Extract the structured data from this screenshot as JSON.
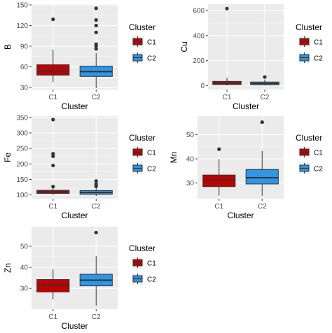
{
  "colors": {
    "panel_bg": "#ebebeb",
    "grid_major": "#ffffff",
    "text_tick": "#4d4d4d",
    "outline": "#333333",
    "C1_fill": "#c00000",
    "C2_fill": "#2f96e6"
  },
  "legend": {
    "title": "Cluster",
    "items": [
      {
        "key": "C1",
        "label": "C1"
      },
      {
        "key": "C2",
        "label": "C2"
      }
    ]
  },
  "chart_data": [
    {
      "type": "boxplot",
      "xlabel": "Cluster",
      "ylabel": "B",
      "categories": [
        "C1",
        "C2"
      ],
      "ylim": [
        27,
        151
      ],
      "yticks": [
        30,
        60,
        90,
        120,
        150
      ],
      "grid": true,
      "legend_position": "right",
      "boxes": [
        {
          "group": "C1",
          "q1": 48,
          "median": 54,
          "q3": 63,
          "lower_whisker": 38,
          "upper_whisker": 85,
          "outliers": [
            129
          ]
        },
        {
          "group": "C2",
          "q1": 46,
          "median": 53,
          "q3": 61,
          "lower_whisker": 29,
          "upper_whisker": 80,
          "outliers": [
            86,
            90,
            93,
            110,
            120,
            128,
            145
          ]
        }
      ]
    },
    {
      "type": "boxplot",
      "xlabel": "Cluster",
      "ylabel": "Cu",
      "categories": [
        "C1",
        "C2"
      ],
      "ylim": [
        -30,
        650
      ],
      "yticks": [
        0,
        200,
        400,
        600
      ],
      "grid": true,
      "legend_position": "right",
      "boxes": [
        {
          "group": "C1",
          "q1": 10,
          "median": 22,
          "q3": 35,
          "lower_whisker": 2,
          "upper_whisker": 65,
          "outliers": [
            615
          ]
        },
        {
          "group": "C2",
          "q1": 8,
          "median": 18,
          "q3": 30,
          "lower_whisker": 2,
          "upper_whisker": 50,
          "outliers": [
            70
          ]
        }
      ]
    },
    {
      "type": "boxplot",
      "xlabel": "Cluster",
      "ylabel": "Fe",
      "categories": [
        "C1",
        "C2"
      ],
      "ylim": [
        88,
        354
      ],
      "yticks": [
        100,
        150,
        200,
        250,
        300,
        350
      ],
      "grid": true,
      "legend_position": "right",
      "boxes": [
        {
          "group": "C1",
          "q1": 105,
          "median": 110,
          "q3": 115,
          "lower_whisker": 100,
          "upper_whisker": 122,
          "outliers": [
            127,
            195,
            225,
            233,
            343
          ]
        },
        {
          "group": "C2",
          "q1": 102,
          "median": 108,
          "q3": 114,
          "lower_whisker": 97,
          "upper_whisker": 124,
          "outliers": [
            128,
            135,
            145
          ]
        }
      ]
    },
    {
      "type": "boxplot",
      "xlabel": "Cluster",
      "ylabel": "Mn",
      "categories": [
        "C1",
        "C2"
      ],
      "ylim": [
        23.5,
        57.7
      ],
      "yticks": [
        30,
        40,
        50
      ],
      "grid": true,
      "legend_position": "right",
      "boxes": [
        {
          "group": "C1",
          "q1": 28.5,
          "median": 31.2,
          "q3": 33.3,
          "lower_whisker": 24.8,
          "upper_whisker": 39.9,
          "outliers": [
            44
          ]
        },
        {
          "group": "C2",
          "q1": 29.6,
          "median": 32.2,
          "q3": 35.6,
          "lower_whisker": 24.7,
          "upper_whisker": 43.3,
          "outliers": [
            55.2
          ]
        }
      ]
    },
    {
      "type": "boxplot",
      "xlabel": "Cluster",
      "ylabel": "Zn",
      "categories": [
        "C1",
        "C2"
      ],
      "ylim": [
        20.1,
        59.3
      ],
      "yticks": [
        30,
        40,
        50
      ],
      "grid": true,
      "legend_position": "right",
      "boxes": [
        {
          "group": "C1",
          "q1": 28.3,
          "median": 31.6,
          "q3": 34.2,
          "lower_whisker": 24.8,
          "upper_whisker": 39.0,
          "outliers": []
        },
        {
          "group": "C2",
          "q1": 31.2,
          "median": 33.9,
          "q3": 36.7,
          "lower_whisker": 21.8,
          "upper_whisker": 45.4,
          "outliers": [
            56.5
          ]
        }
      ]
    }
  ]
}
